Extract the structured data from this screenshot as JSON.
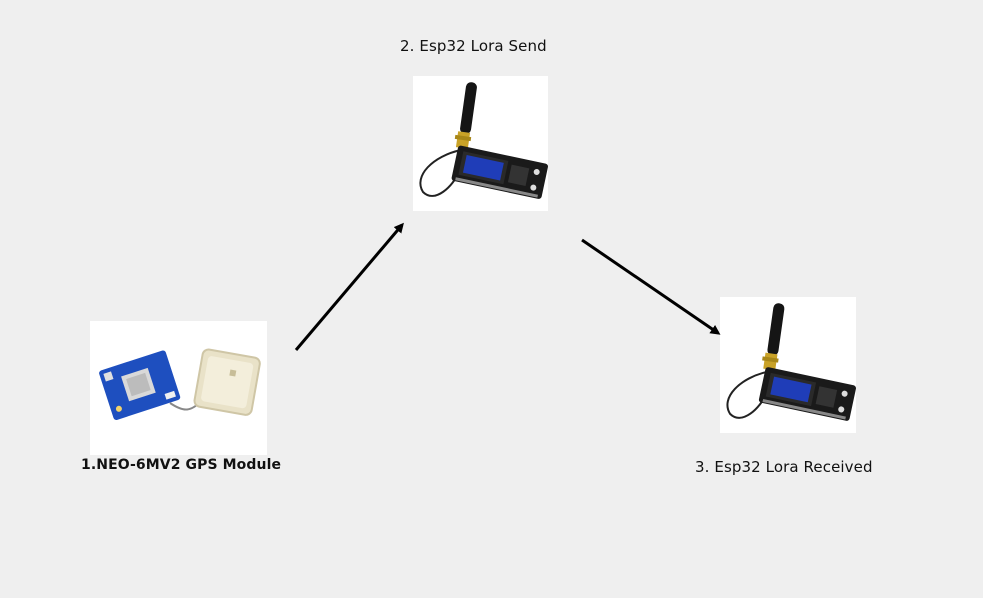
{
  "nodes": {
    "gps": {
      "label": "1.NEO-6MV2 GPS Module",
      "icon": "gps-module-icon"
    },
    "sender": {
      "label": "2. Esp32 Lora Send",
      "icon": "esp32-lora-board-icon"
    },
    "receiver": {
      "label": "3. Esp32 Lora Received",
      "icon": "esp32-lora-board-icon"
    }
  },
  "edges": [
    {
      "from": "gps",
      "to": "sender"
    },
    {
      "from": "sender",
      "to": "receiver"
    }
  ],
  "colors": {
    "background": "#efefef",
    "arrow": "#000000",
    "board_black": "#1a1a1a",
    "oled_blue": "#1f3db8",
    "gps_pcb_blue": "#1e4fbf",
    "antenna_gold": "#c9a227"
  }
}
